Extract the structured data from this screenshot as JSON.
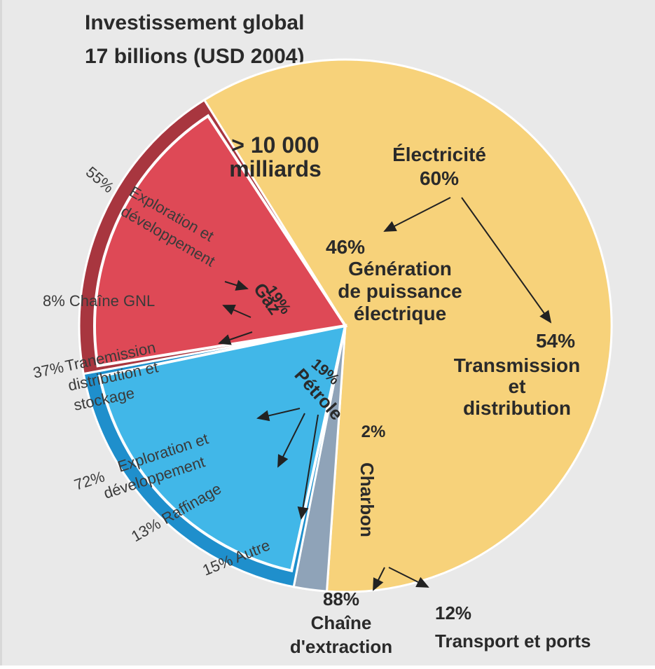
{
  "chart_data": {
    "type": "pie",
    "title": "Investissement global",
    "subtitle": "17 billions (USD 2004)",
    "slices": [
      {
        "name": "Électricité",
        "label": "Électricité",
        "value_label": "60%",
        "value": 60,
        "color": "#f7d27a",
        "note": "> 10 000 milliards",
        "breakdown": [
          {
            "value_label": "46%",
            "value": 46,
            "label": "Génération de puissance électrique"
          },
          {
            "value_label": "54%",
            "value": 54,
            "label": "Transmission et distribution"
          }
        ]
      },
      {
        "name": "Charbon",
        "label": "Charbon",
        "value_label": "2%",
        "value": 2,
        "color": "#8fa3b8",
        "breakdown": [
          {
            "value_label": "88%",
            "value": 88,
            "label": "Chaîne d'extraction"
          },
          {
            "value_label": "12%",
            "value": 12,
            "label": "Transport et ports"
          }
        ]
      },
      {
        "name": "Pétrole",
        "label": "Pétrole",
        "value_label": "19%",
        "value": 19,
        "color": "#41b7e8",
        "breakdown": [
          {
            "value_label": "72%",
            "value": 72,
            "label": "Exploration et développement"
          },
          {
            "value_label": "13%",
            "value": 13,
            "label": "Raffinage"
          },
          {
            "value_label": "15%",
            "value": 15,
            "label": "Autre"
          }
        ]
      },
      {
        "name": "Gaz",
        "label": "Gaz",
        "value_label": "19%",
        "value": 19,
        "color": "#de4956",
        "breakdown": [
          {
            "value_label": "55%",
            "value": 55,
            "label": "Exploration et développement"
          },
          {
            "value_label": "8%",
            "value": 8,
            "label": "Chaîne GNL"
          },
          {
            "value_label": "37%",
            "value": 37,
            "label": "Transmission distribution et stockage"
          }
        ]
      }
    ]
  },
  "texts": {
    "note_line1": "> 10 000",
    "note_line2": "milliards",
    "elec_name": "Électricité",
    "elec_pct": "60%",
    "gen_pct": "46%",
    "gen_l1": "Génération",
    "gen_l2": "de puissance",
    "gen_l3": "électrique",
    "td_pct": "54%",
    "td_l1": "Transmission",
    "td_l2": "et",
    "td_l3": "distribution",
    "gaz_name": "Gaz",
    "gaz_pct": "19%",
    "gaz_expl_pct": "55%",
    "gaz_expl_l1": "Exploration et",
    "gaz_expl_l2": "développement",
    "gnl": "8% Chaîne GNL",
    "gaz_trans_pct": "37%",
    "gaz_trans_l1": "Tranemission",
    "gaz_trans_l2": "distribution et",
    "gaz_trans_l3": "stockage",
    "pet_name": "Pétrole",
    "pet_pct": "19%",
    "pet_expl_pct": "72%",
    "pet_expl_l1": "Exploration et",
    "pet_expl_l2": "développement",
    "raff": "13% Raffinage",
    "autre": "15% Autre",
    "char_name": "Charbon",
    "char_pct": "2%",
    "ext_pct": "88%",
    "ext_l1": "Chaîne",
    "ext_l2": "d'extraction",
    "tp_pct": "12%",
    "tp_l1": "Transport et ports"
  }
}
